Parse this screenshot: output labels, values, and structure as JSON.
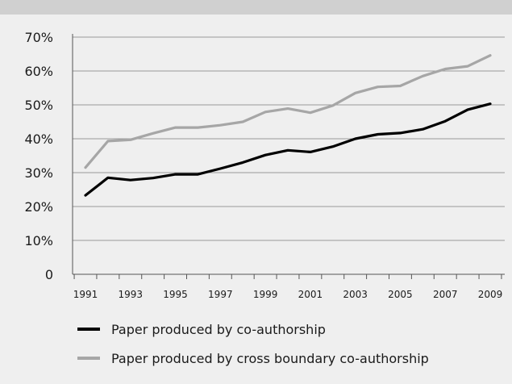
{
  "chart_data": {
    "type": "line",
    "x": [
      1991,
      1992,
      1993,
      1994,
      1995,
      1996,
      1997,
      1998,
      1999,
      2000,
      2001,
      2002,
      2003,
      2004,
      2005,
      2006,
      2007,
      2008,
      2009
    ],
    "x_tick_labels": [
      "1991",
      "1993",
      "1995",
      "1997",
      "1999",
      "2001",
      "2003",
      "2005",
      "2007",
      "2009"
    ],
    "y_tick_labels": [
      "0",
      "10%",
      "20%",
      "30%",
      "40%",
      "50%",
      "60%",
      "70%"
    ],
    "ylim": [
      0,
      70
    ],
    "grid": true,
    "legend_position": "bottom",
    "series": [
      {
        "name": "Paper produced by co-authorship",
        "color": "#000000",
        "values": [
          23.3,
          28.5,
          27.8,
          28.4,
          29.5,
          29.5,
          31.2,
          33.0,
          35.2,
          36.6,
          36.1,
          37.7,
          40.0,
          41.3,
          41.7,
          42.8,
          45.2,
          48.6,
          50.3
        ]
      },
      {
        "name": "Paper produced by cross boundary co-authorship",
        "color": "#a6a6a6",
        "values": [
          31.5,
          39.3,
          39.7,
          41.6,
          43.3,
          43.3,
          44.0,
          45.0,
          47.9,
          48.9,
          47.7,
          49.8,
          53.5,
          55.3,
          55.6,
          58.5,
          60.6,
          61.4,
          64.6
        ]
      }
    ]
  }
}
